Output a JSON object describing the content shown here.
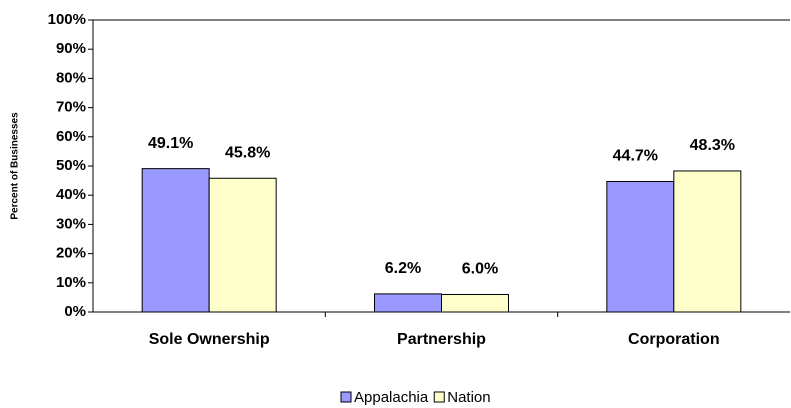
{
  "chart_data": {
    "type": "bar",
    "y_axis_label": "Percent of Businesses",
    "categories": [
      "Sole Ownership",
      "Partnership",
      "Corporation"
    ],
    "series": [
      {
        "name": "Appalachia",
        "color": "#9999ff",
        "values": [
          49.1,
          6.2,
          44.7
        ],
        "value_labels": [
          "49.1%",
          "6.2%",
          "44.7%"
        ]
      },
      {
        "name": "Nation",
        "color": "#ffffcc",
        "values": [
          45.8,
          6.0,
          48.3
        ],
        "value_labels": [
          "45.8%",
          "6.0%",
          "48.3%"
        ]
      }
    ],
    "ylim": [
      0,
      100
    ],
    "yticks": [
      {
        "value": 0,
        "label": "0%"
      },
      {
        "value": 10,
        "label": "10%"
      },
      {
        "value": 20,
        "label": "20%"
      },
      {
        "value": 30,
        "label": "30%"
      },
      {
        "value": 40,
        "label": "40%"
      },
      {
        "value": 50,
        "label": "50%"
      },
      {
        "value": 60,
        "label": "60%"
      },
      {
        "value": 70,
        "label": "70%"
      },
      {
        "value": 80,
        "label": "80%"
      },
      {
        "value": 90,
        "label": "90%"
      },
      {
        "value": 100,
        "label": "100%"
      }
    ],
    "legend": "bottom"
  }
}
